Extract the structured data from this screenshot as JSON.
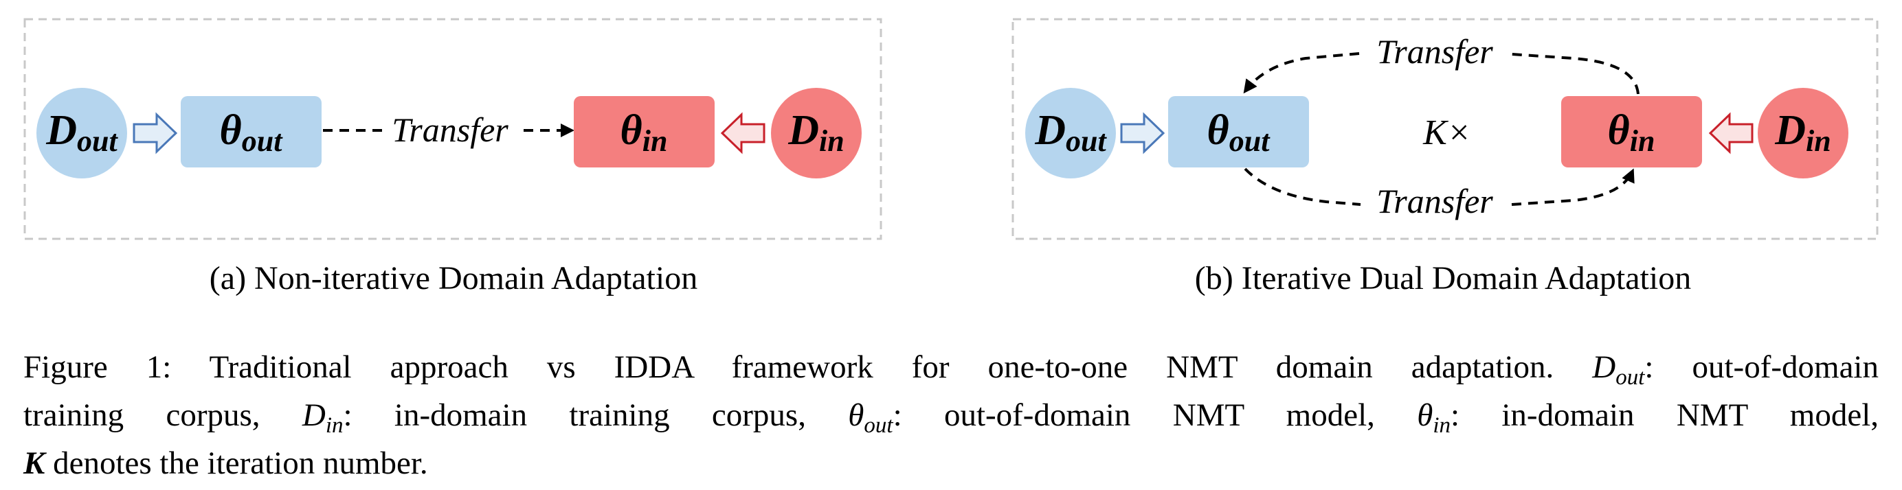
{
  "panel_a": {
    "caption": "(a) Non-iterative Domain Adaptation",
    "d_out": {
      "main": "D",
      "sub": "out"
    },
    "theta_out": {
      "main": "θ",
      "sub": "out"
    },
    "theta_in": {
      "main": "θ",
      "sub": "in"
    },
    "d_in": {
      "main": "D",
      "sub": "in"
    },
    "edge_label": "Transfer"
  },
  "panel_b": {
    "caption": "(b) Iterative Dual Domain Adaptation",
    "d_out": {
      "main": "D",
      "sub": "out"
    },
    "theta_out": {
      "main": "θ",
      "sub": "out"
    },
    "theta_in": {
      "main": "θ",
      "sub": "in"
    },
    "d_in": {
      "main": "D",
      "sub": "in"
    },
    "top_edge_label": "Transfer",
    "bottom_edge_label": "Transfer",
    "iteration_label": "K×"
  },
  "figure_caption": {
    "lead": "Figure 1:  Traditional approach vs IDDA framework for one-to-one NMT domain adaptation.",
    "d_out_main": "D",
    "d_out_sub": "out",
    "d_out_def": ": out-of-domain",
    "line2_start": "training corpus,",
    "d_in_main": "D",
    "d_in_sub": "in",
    "d_in_def": ": in-domain training corpus,",
    "theta_out_main": "θ",
    "theta_out_sub": "out",
    "theta_out_def": ": out-of-domain NMT model,",
    "theta_in_main": "θ",
    "theta_in_sub": "in",
    "theta_in_def": ": in-domain NMT model,",
    "k_symbol": "K",
    "k_def": "denotes the iteration number."
  },
  "colors": {
    "blue_fill": "#b5d5ee",
    "red_fill": "#f47f7f",
    "blue_arrow": "#4a78b8",
    "red_arrow": "#c8202a",
    "frame": "#c8c8c8"
  }
}
